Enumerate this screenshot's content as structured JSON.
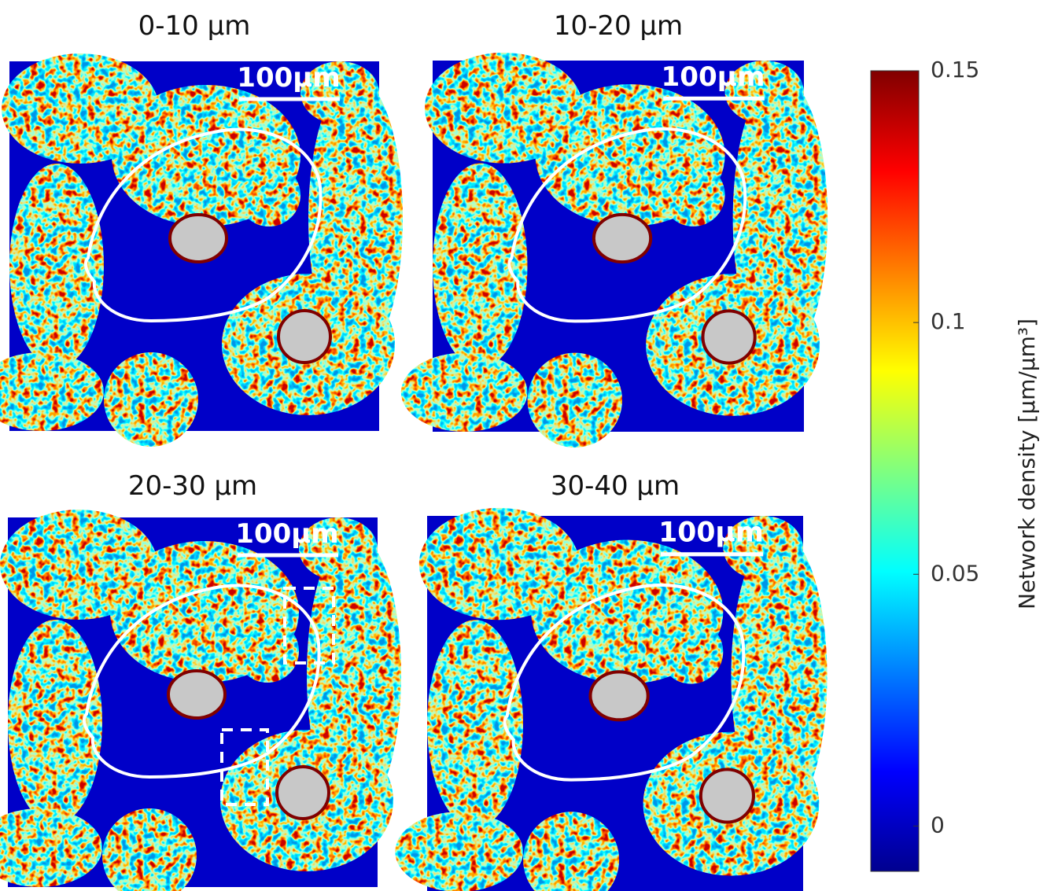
{
  "panels": [
    {
      "title": "0-10 µm",
      "scale_bar": "100µm"
    },
    {
      "title": "10-20 µm",
      "scale_bar": "100µm"
    },
    {
      "title": "20-30 µm",
      "scale_bar": "100µm"
    },
    {
      "title": "30-40 µm",
      "scale_bar": "100µm"
    }
  ],
  "colorbar": {
    "label": "Network density [µm/µm³]",
    "lim": [
      -0.009,
      0.15
    ],
    "ticks": [
      0,
      0.05,
      0.1,
      0.15
    ],
    "colormap": "jet"
  }
}
